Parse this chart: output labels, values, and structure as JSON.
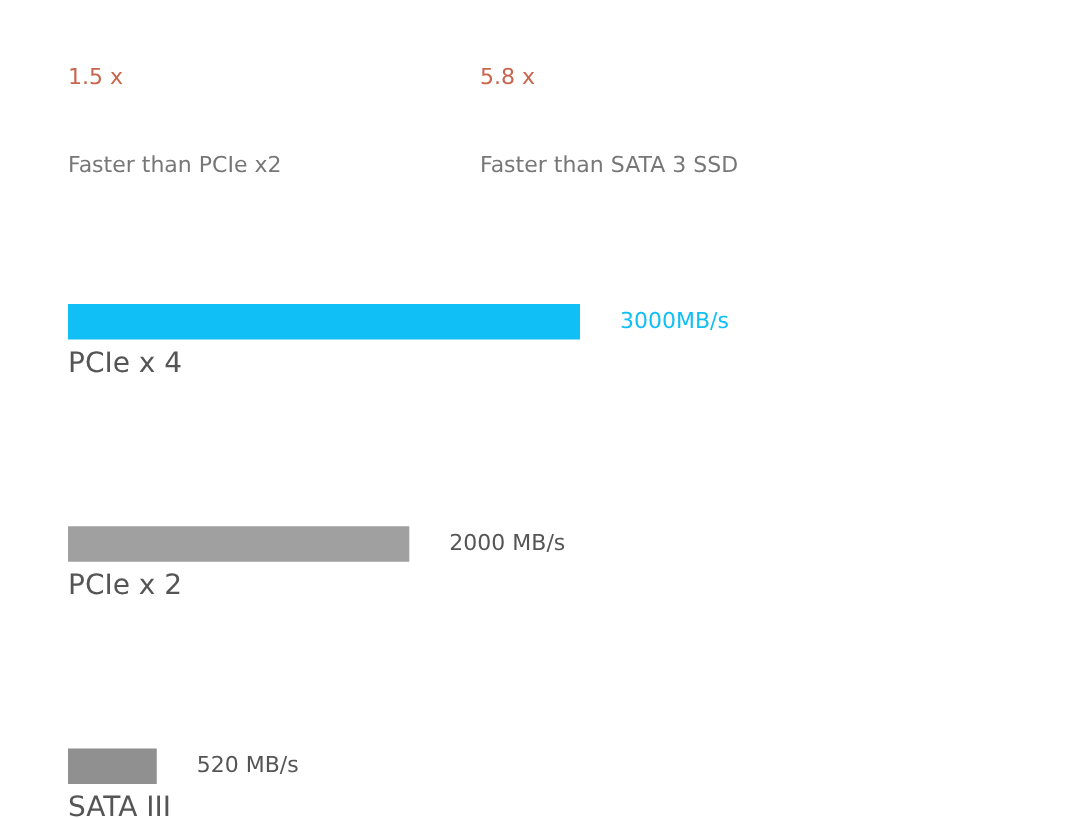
{
  "chart_data": {
    "type": "bar",
    "orientation": "horizontal",
    "categories": [
      "PCIe x 4",
      "PCIe x 2",
      "SATA III"
    ],
    "values": [
      3000,
      2000,
      520
    ],
    "colors": [
      "#10bff5",
      "#a0a0a0",
      "#909090"
    ],
    "value_labels": [
      "3000MB/s",
      "2000 MB/s",
      "520 MB/s"
    ],
    "annotations": [
      "1.5 x",
      "Faster than PCIe x2",
      "5.8 x",
      "Faster than SATA 3 SSD"
    ]
  }
}
